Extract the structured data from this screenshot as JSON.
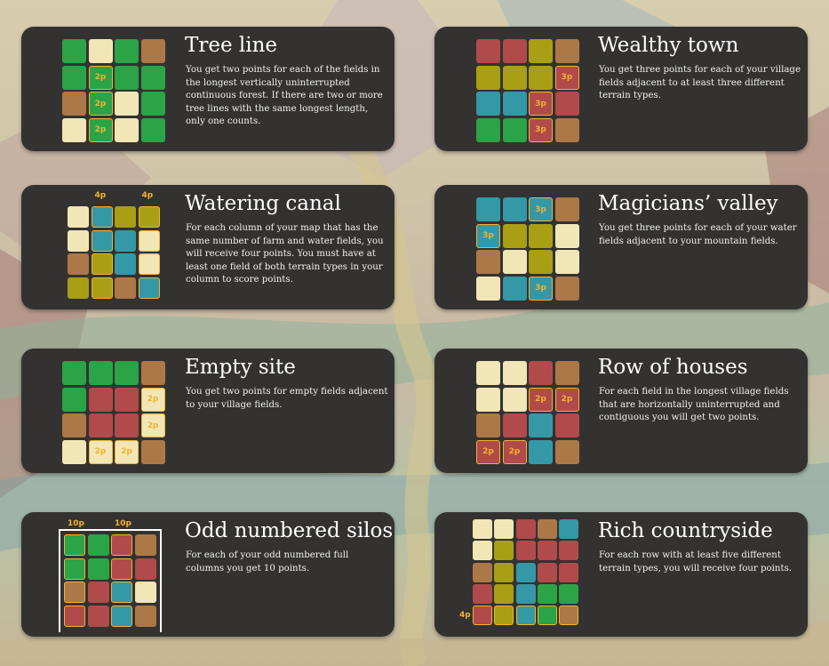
{
  "colors": {
    "forest": "#2aa447",
    "farm": "#f2e6b6",
    "water": "#3598a6",
    "village": "#b14a4a",
    "monster": "#a89f14",
    "empty": "#ad7847",
    "highlight": "#f2b32e",
    "card_bg": "#333231"
  },
  "cards": [
    {
      "title": "Tree line",
      "desc": "You get two points for each of the fields in the longest vertically uninterrupted continuous forest. If there are two or more tree lines with the same longest length, only one counts.",
      "grid": [
        [
          "G",
          "F",
          "G",
          "B"
        ],
        [
          "G",
          "G*",
          "G",
          "G"
        ],
        [
          "B",
          "G*",
          "F",
          "G"
        ],
        [
          "F",
          "G*",
          "F",
          "G"
        ]
      ],
      "points": [
        [
          "",
          "",
          "",
          ""
        ],
        [
          "",
          "2p",
          "",
          ""
        ],
        [
          "",
          "2p",
          "",
          ""
        ],
        [
          "",
          "2p",
          "",
          ""
        ]
      ],
      "top_labels": [],
      "left_labels": [],
      "bracket": false
    },
    {
      "title": "Wealthy town",
      "desc": "You get three points for each of your village fields adjacent to at least three different terrain types.",
      "grid": [
        [
          "R",
          "R",
          "Y",
          "B"
        ],
        [
          "Y",
          "Y",
          "Y",
          "R*"
        ],
        [
          "W",
          "W",
          "R*",
          "R"
        ],
        [
          "G",
          "G",
          "R*",
          "B"
        ]
      ],
      "points": [
        [
          "",
          "",
          "",
          ""
        ],
        [
          "",
          "",
          "",
          "3p"
        ],
        [
          "",
          "",
          "3p",
          ""
        ],
        [
          "",
          "",
          "3p",
          ""
        ]
      ],
      "top_labels": [],
      "left_labels": [],
      "bracket": false
    },
    {
      "title": "Watering canal",
      "desc": "For each column of your map that has the same number of farm and water fields, you will receive four points. You must have at least one field of both terrain types in your column to score points.",
      "grid": [
        [
          "F",
          "W*",
          "Y",
          "Y*"
        ],
        [
          "F",
          "W*",
          "W",
          "F*"
        ],
        [
          "B",
          "Y*",
          "W",
          "F*"
        ],
        [
          "Y",
          "Y*",
          "B",
          "W*"
        ]
      ],
      "points": [
        [
          "",
          "",
          "",
          ""
        ],
        [
          "",
          "",
          "",
          ""
        ],
        [
          "",
          "",
          "",
          ""
        ],
        [
          "",
          "",
          "",
          ""
        ]
      ],
      "top_labels": [
        "",
        "4p",
        "",
        "4p"
      ],
      "left_labels": [],
      "bracket": false
    },
    {
      "title": "Magicians’ valley",
      "desc": "You get three points for each of your water fields adjacent to your mountain fields.",
      "grid": [
        [
          "W",
          "W",
          "W*",
          "B"
        ],
        [
          "W*",
          "Y",
          "Y",
          "F"
        ],
        [
          "B",
          "F",
          "Y",
          "F"
        ],
        [
          "F",
          "W",
          "W*",
          "B"
        ]
      ],
      "points": [
        [
          "",
          "",
          "3p",
          ""
        ],
        [
          "3p",
          "",
          "",
          ""
        ],
        [
          "",
          "",
          "",
          ""
        ],
        [
          "",
          "",
          "3p",
          ""
        ]
      ],
      "top_labels": [],
      "left_labels": [],
      "bracket": false
    },
    {
      "title": "Empty site",
      "desc": "You get two points for empty fields adjacent to your village fields.",
      "grid": [
        [
          "G",
          "G",
          "G",
          "B"
        ],
        [
          "G",
          "R",
          "R",
          "F*"
        ],
        [
          "B",
          "R",
          "R",
          "F*"
        ],
        [
          "F",
          "F*",
          "F*",
          "B"
        ]
      ],
      "points": [
        [
          "",
          "",
          "",
          ""
        ],
        [
          "",
          "",
          "",
          "2p"
        ],
        [
          "",
          "",
          "",
          "2p"
        ],
        [
          "",
          "2p",
          "2p",
          ""
        ]
      ],
      "top_labels": [],
      "left_labels": [],
      "bracket": false
    },
    {
      "title": "Row of houses",
      "desc": "For each field in the longest village fields that are horizontally uninterrupted and contiguous you will get two points.",
      "grid": [
        [
          "F",
          "F",
          "R",
          "B"
        ],
        [
          "F",
          "F",
          "R*",
          "R*"
        ],
        [
          "B",
          "R",
          "W",
          "R"
        ],
        [
          "R*",
          "R*",
          "W",
          "B"
        ]
      ],
      "points": [
        [
          "",
          "",
          "",
          ""
        ],
        [
          "",
          "",
          "2p",
          "2p"
        ],
        [
          "",
          "",
          "",
          ""
        ],
        [
          "2p",
          "2p",
          "",
          ""
        ]
      ],
      "top_labels": [],
      "left_labels": [],
      "bracket": false
    },
    {
      "title": "Odd numbered silos",
      "desc": "For each of your odd numbered full columns you get 10 points.",
      "grid": [
        [
          "G*",
          "G",
          "R*",
          "B"
        ],
        [
          "G*",
          "G",
          "R*",
          "R"
        ],
        [
          "B*",
          "R",
          "W*",
          "F"
        ],
        [
          "R*",
          "R",
          "W*",
          "B"
        ]
      ],
      "points": [
        [
          "",
          "",
          "",
          ""
        ],
        [
          "",
          "",
          "",
          ""
        ],
        [
          "",
          "",
          "",
          ""
        ],
        [
          "",
          "",
          "",
          ""
        ]
      ],
      "top_labels": [
        "10p",
        "",
        "10p",
        ""
      ],
      "left_labels": [],
      "bracket": true
    },
    {
      "title": "Rich countryside",
      "desc": "For each row with at least five different terrain types, you will receive four points.",
      "grid": [
        [
          "F",
          "F",
          "R",
          "B",
          "W"
        ],
        [
          "F",
          "Y",
          "R",
          "R",
          "R"
        ],
        [
          "B",
          "Y",
          "W",
          "R",
          "R"
        ],
        [
          "R",
          "Y",
          "W",
          "G",
          "G"
        ],
        [
          "R*",
          "Y*",
          "W*",
          "G*",
          "B*"
        ]
      ],
      "points": [
        [
          "",
          "",
          "",
          "",
          ""
        ],
        [
          "",
          "",
          "",
          "",
          ""
        ],
        [
          "",
          "",
          "",
          "",
          ""
        ],
        [
          "",
          "",
          "",
          "",
          ""
        ],
        [
          "",
          "",
          "",
          "",
          ""
        ]
      ],
      "top_labels": [],
      "left_labels": [
        "",
        "",
        "",
        "",
        "4p"
      ],
      "bracket": false
    }
  ]
}
